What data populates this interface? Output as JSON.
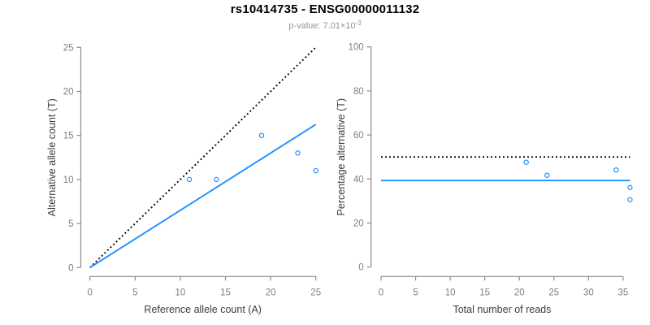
{
  "header": {
    "title": "rs10414735 - ENSG00000011132",
    "p_value_prefix": "p-value: 7.01×10",
    "p_value_exponent": "-3"
  },
  "colors": {
    "accent_blue": "#1E90FF",
    "dotted_line_black": "#000000",
    "axis_stroke_gray": "#8b8b8b",
    "tick_label_gray": "#7f7f7f",
    "axis_title_gray": "#3d3d3d",
    "subtitle_gray": "#949494",
    "background": "#ffffff"
  },
  "chart_data": [
    {
      "type": "scatter",
      "name": "allele-counts",
      "xlabel": "Reference allele count (A)",
      "ylabel": "Alternative allele count (T)",
      "xlim": [
        0,
        25
      ],
      "ylim": [
        0,
        25
      ],
      "xticks": [
        0,
        5,
        10,
        15,
        20,
        25
      ],
      "yticks": [
        0,
        5,
        10,
        15,
        20,
        25
      ],
      "grid": false,
      "legend": null,
      "points": [
        {
          "x": 11,
          "y": 10
        },
        {
          "x": 14,
          "y": 10
        },
        {
          "x": 19,
          "y": 15
        },
        {
          "x": 23,
          "y": 13
        },
        {
          "x": 25,
          "y": 11
        }
      ],
      "lines": [
        {
          "name": "identity-line",
          "style": "dotted",
          "color": "#000000",
          "x1": 0,
          "y1": 0,
          "x2": 25,
          "y2": 25
        },
        {
          "name": "fit-line",
          "style": "solid",
          "color": "#1E90FF",
          "x1": 0,
          "y1": 0,
          "x2": 25,
          "y2": 16.25
        }
      ]
    },
    {
      "type": "scatter",
      "name": "percentage-alternative",
      "xlabel": "Total number of reads",
      "ylabel": "Percentage alternative (T)",
      "xlim": [
        0,
        36
      ],
      "ylim": [
        0,
        100
      ],
      "xticks": [
        0,
        5,
        10,
        15,
        20,
        25,
        30,
        35
      ],
      "yticks": [
        0,
        20,
        40,
        60,
        80,
        100
      ],
      "grid": false,
      "legend": null,
      "points": [
        {
          "x": 21,
          "y": 47.6
        },
        {
          "x": 24,
          "y": 41.7
        },
        {
          "x": 34,
          "y": 44.1
        },
        {
          "x": 36,
          "y": 36.1
        },
        {
          "x": 36,
          "y": 30.6
        }
      ],
      "lines": [
        {
          "name": "expected-50pct-line",
          "style": "dotted",
          "color": "#000000",
          "x1": 0,
          "y1": 50,
          "x2": 36,
          "y2": 50
        },
        {
          "name": "mean-percentage-line",
          "style": "solid",
          "color": "#1E90FF",
          "x1": 0,
          "y1": 39.3,
          "x2": 36,
          "y2": 39.3
        }
      ]
    }
  ]
}
